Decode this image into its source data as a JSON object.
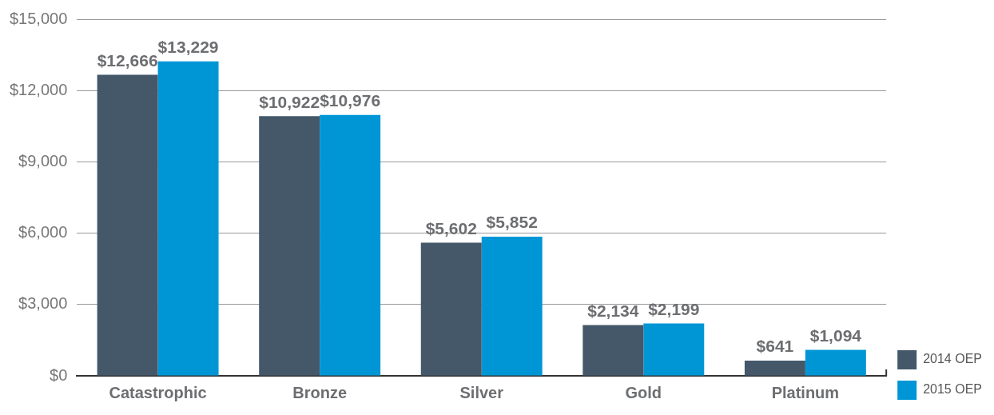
{
  "chart_data": {
    "type": "bar",
    "categories": [
      "Catastrophic",
      "Bronze",
      "Silver",
      "Gold",
      "Platinum"
    ],
    "series": [
      {
        "name": "2014 OEP",
        "color": "#44586a",
        "values": [
          12666,
          10922,
          5602,
          2134,
          641
        ],
        "value_labels": [
          "$12,666",
          "$10,922",
          "$5,602",
          "$2,134",
          "$641"
        ]
      },
      {
        "name": "2015 OEP",
        "color": "#0096d6",
        "values": [
          13229,
          10976,
          5852,
          2199,
          1094
        ],
        "value_labels": [
          "$13,229",
          "$10,976",
          "$5,852",
          "$2,199",
          "$1,094"
        ]
      }
    ],
    "ylim": [
      0,
      15000
    ],
    "yticks": [
      {
        "value": 0,
        "label": "$0"
      },
      {
        "value": 3000,
        "label": "$3,000"
      },
      {
        "value": 6000,
        "label": "$6,000"
      },
      {
        "value": 9000,
        "label": "$9,000"
      },
      {
        "value": 12000,
        "label": "$12,000"
      },
      {
        "value": 15000,
        "label": "$15,000"
      }
    ],
    "grid": "y",
    "legend": "bottom right"
  }
}
